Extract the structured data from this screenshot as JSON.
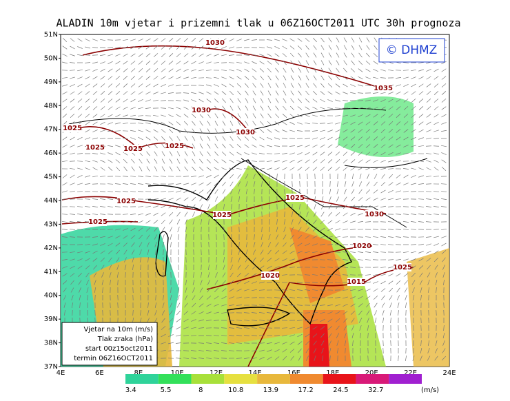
{
  "header": {
    "title": "ALADIN 10m vjetar i prizemni tlak u 06Z16OCT2011 UTC 30h prognoza",
    "logo": "© DHMZ"
  },
  "lat_labels": [
    "51N",
    "50N",
    "49N",
    "48N",
    "47N",
    "46N",
    "45N",
    "44N",
    "43N",
    "42N",
    "41N",
    "40N",
    "39N",
    "38N",
    "37N"
  ],
  "lon_labels": [
    "4E",
    "6E",
    "8E",
    "10E",
    "12E",
    "14E",
    "16E",
    "18E",
    "20E",
    "22E",
    "24E"
  ],
  "isobar_labels": [
    "1030",
    "1035",
    "1030",
    "1025",
    "1030",
    "1025",
    "1025",
    "1025",
    "1025",
    "1025",
    "1025",
    "1025",
    "1030",
    "1020",
    "1025",
    "1020",
    "1015"
  ],
  "info_box": [
    "Vjetar na 10m (m/s)",
    "Tlak zraka (hPa)",
    "start 00z15oct2011",
    "termin 06Z16OCT2011"
  ],
  "colorbar": {
    "labels": [
      "3.4",
      "5.5",
      "8",
      "10.8",
      "13.9",
      "17.2",
      "24.5",
      "32.7"
    ],
    "unit": "(m/s)",
    "colors": [
      "#2fd39a",
      "#33e05a",
      "#a8e03a",
      "#e6e040",
      "#e8b83c",
      "#f08a30",
      "#e8141a",
      "#d81a78",
      "#a020d0"
    ]
  }
}
